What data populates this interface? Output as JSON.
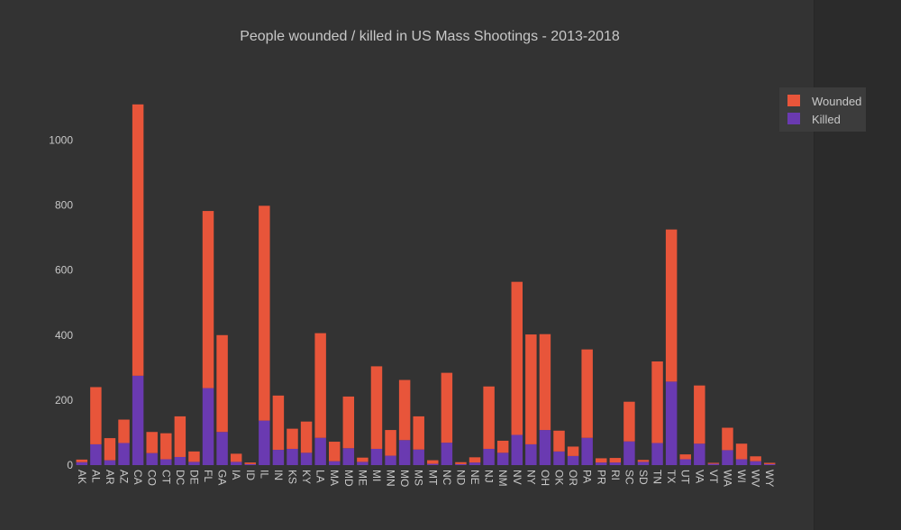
{
  "colors": {
    "background": "#333333",
    "sidebar": "#2b2b2b",
    "wounded": "#e8553a",
    "killed": "#6a3ab1",
    "text": "#c8c8c8",
    "legend_bg": "#3c3c3c"
  },
  "chart_data": {
    "type": "bar",
    "stacked": true,
    "title": "People wounded / killed in US Mass Shootings - 2013-2018",
    "xlabel": "",
    "ylabel": "",
    "ylim": [
      0,
      1140
    ],
    "yticks": [
      0,
      200,
      400,
      600,
      800,
      1000
    ],
    "grid": false,
    "legend_position": "top-right",
    "categories": [
      "AK",
      "AL",
      "AR",
      "AZ",
      "CA",
      "CO",
      "CT",
      "DC",
      "DE",
      "FL",
      "GA",
      "IA",
      "ID",
      "IL",
      "IN",
      "KS",
      "KY",
      "LA",
      "MA",
      "MD",
      "ME",
      "MI",
      "MN",
      "MO",
      "MS",
      "MT",
      "NC",
      "ND",
      "NE",
      "NJ",
      "NM",
      "NV",
      "NY",
      "OH",
      "OK",
      "OR",
      "PA",
      "PR",
      "RI",
      "SC",
      "SD",
      "TN",
      "TX",
      "UT",
      "VA",
      "VT",
      "WA",
      "WI",
      "WV",
      "WY"
    ],
    "series": [
      {
        "name": "Killed",
        "color": "#6a3ab1",
        "values": [
          9,
          64,
          15,
          68,
          275,
          37,
          18,
          25,
          10,
          237,
          102,
          10,
          3,
          137,
          47,
          50,
          38,
          84,
          12,
          52,
          10,
          50,
          29,
          77,
          48,
          4,
          69,
          3,
          8,
          50,
          38,
          93,
          64,
          108,
          42,
          28,
          84,
          8,
          8,
          73,
          10,
          68,
          257,
          18,
          66,
          4,
          46,
          18,
          12,
          3
        ]
      },
      {
        "name": "Wounded",
        "color": "#e8553a",
        "values": [
          8,
          176,
          68,
          72,
          835,
          65,
          80,
          125,
          32,
          545,
          298,
          25,
          5,
          661,
          167,
          62,
          96,
          322,
          60,
          159,
          13,
          254,
          79,
          185,
          102,
          11,
          215,
          6,
          16,
          192,
          37,
          471,
          338,
          295,
          64,
          29,
          272,
          13,
          14,
          122,
          6,
          251,
          468,
          15,
          179,
          3,
          69,
          48,
          15,
          4
        ]
      }
    ]
  }
}
